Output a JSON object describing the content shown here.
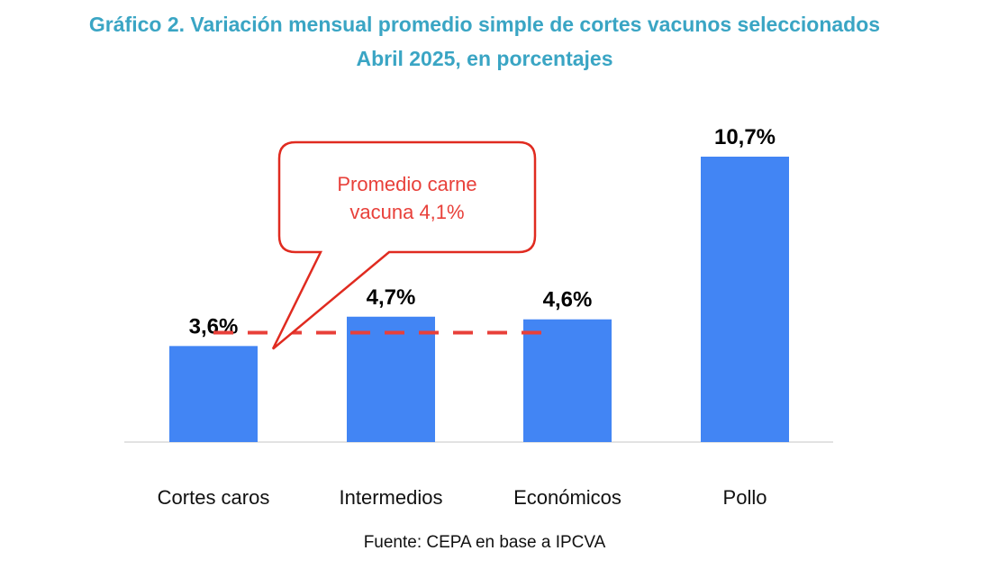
{
  "title": "Gráfico 2. Variación mensual promedio simple de cortes vacunos seleccionados",
  "subtitle": "Abril 2025, en porcentajes",
  "source": "Fuente: CEPA en base a IPCVA",
  "colors": {
    "bar": "#4285f4",
    "average_line": "#e8403a",
    "title": "#3aa5c4"
  },
  "chart_data": {
    "type": "bar",
    "categories": [
      "Cortes caros",
      "Intermedios",
      "Económicos",
      "Pollo"
    ],
    "values": [
      3.6,
      4.7,
      4.6,
      10.7
    ],
    "value_labels": [
      "3,6%",
      "4,7%",
      "4,6%",
      "10,7%"
    ],
    "ylim": [
      0,
      10.7
    ],
    "grid": false,
    "average": {
      "value": 4.1,
      "label_lines": [
        "Promedio carne",
        "vacuna 4,1%"
      ]
    }
  }
}
